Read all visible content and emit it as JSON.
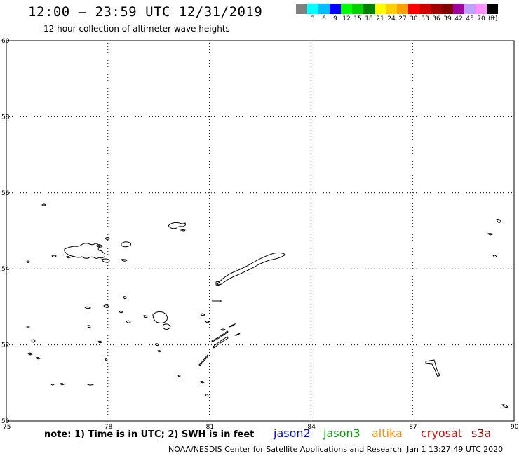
{
  "header": {
    "title": "12:00 — 23:59 UTC 12/31/2019",
    "subtitle": "12 hour collection of altimeter wave heights"
  },
  "colorbar": {
    "colors": [
      "#808080",
      "#00ffff",
      "#00bfff",
      "#0000ff",
      "#00ff00",
      "#00d000",
      "#008000",
      "#ffff00",
      "#ffd000",
      "#ffa000",
      "#ff0000",
      "#d00000",
      "#a00000",
      "#800000",
      "#a000a0",
      "#c0a0ff",
      "#ff90ff",
      "#000000"
    ],
    "labels": [
      "3",
      "6",
      "9",
      "12",
      "15",
      "18",
      "21",
      "24",
      "27",
      "30",
      "33",
      "36",
      "39",
      "42",
      "45",
      "70"
    ],
    "unit": "(ft)"
  },
  "map": {
    "y_ticks": [
      "60",
      "58",
      "56",
      "54",
      "52",
      "50"
    ],
    "x_ticks": [
      "75",
      "78",
      "81",
      "84",
      "87",
      "90"
    ],
    "lat_range": [
      50,
      60
    ],
    "lon_range": [
      75,
      90
    ]
  },
  "footer": {
    "note": "note:  1) Time is in UTC;  2) SWH is in feet",
    "legend": [
      {
        "name": "jason2",
        "color": "#0000ff"
      },
      {
        "name": "jason3",
        "color": "#00a000"
      },
      {
        "name": "altika",
        "color": "#ff8c00"
      },
      {
        "name": "cryosat",
        "color": "#e00000"
      },
      {
        "name": "s3a",
        "color": "#a00000"
      }
    ],
    "credit": "NOAA/NESDIS Center for Satellite Applications and Research",
    "timestamp": "Jan  1 13:27:49 UTC 2020"
  }
}
